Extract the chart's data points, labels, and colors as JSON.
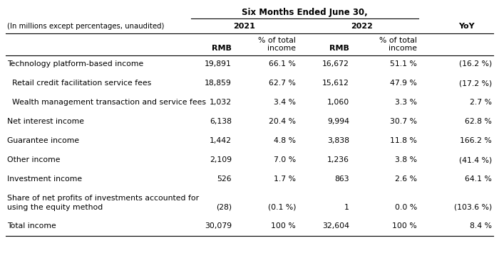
{
  "title": "Six Months Ended June 30,",
  "subtitle": "(In millions except percentages, unaudited)",
  "rows": [
    [
      "Technology platform-based income",
      "19,891",
      "66.1 %",
      "16,672",
      "51.1 %",
      "(16.2 %)"
    ],
    [
      "  Retail credit facilitation service fees",
      "18,859",
      "62.7 %",
      "15,612",
      "47.9 %",
      "(17.2 %)"
    ],
    [
      "  Wealth management transaction and service fees",
      "1,032",
      "3.4 %",
      "1,060",
      "3.3 %",
      "2.7 %"
    ],
    [
      "Net interest income",
      "6,138",
      "20.4 %",
      "9,994",
      "30.7 %",
      "62.8 %"
    ],
    [
      "Guarantee income",
      "1,442",
      "4.8 %",
      "3,838",
      "11.8 %",
      "166.2 %"
    ],
    [
      "Other income",
      "2,109",
      "7.0 %",
      "1,236",
      "3.8 %",
      "(41.4 %)"
    ],
    [
      "Investment income",
      "526",
      "1.7 %",
      "863",
      "2.6 %",
      "64.1 %"
    ],
    [
      "Share of net profits of investments accounted for",
      "(28)",
      "(0.1 %)",
      "1",
      "0.0 %",
      "(103.6 %)"
    ],
    [
      "Total income",
      "30,079",
      "100 %",
      "32,604",
      "100 %",
      "8.4 %"
    ]
  ],
  "bg_color": "#ffffff",
  "text_color": "#000000",
  "line_color": "#000000"
}
